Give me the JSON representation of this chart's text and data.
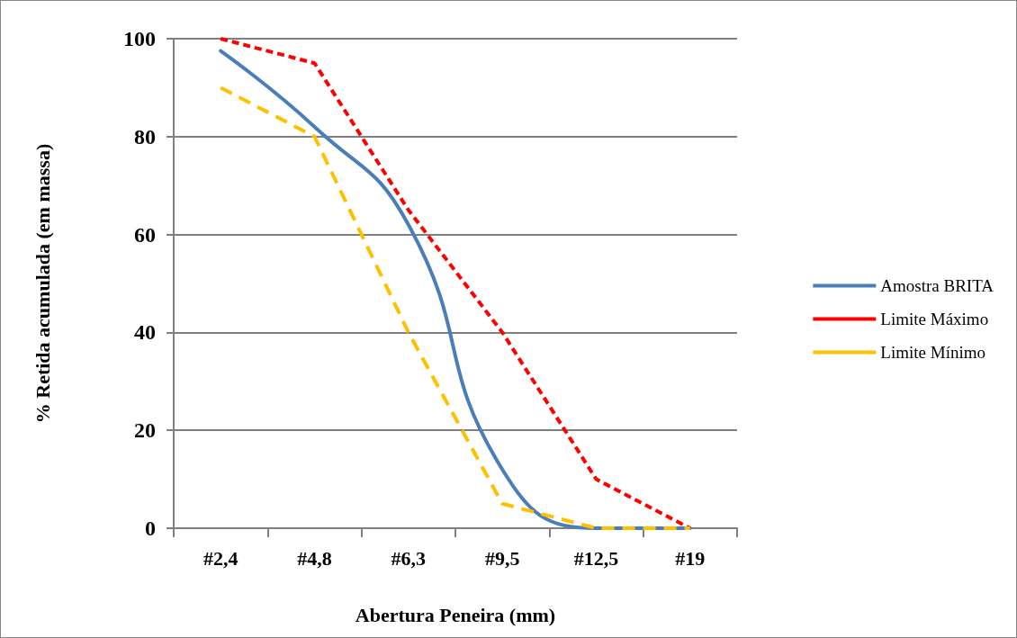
{
  "chart_data": {
    "type": "line",
    "xlabel": "Abertura Peneira (mm)",
    "ylabel": "% Retida acumulada (em massa)",
    "categories": [
      "#2,4",
      "#4,8",
      "#6,3",
      "#9,5",
      "#12,5",
      "#19"
    ],
    "series": [
      {
        "name": "Amostra BRITA",
        "color": "#4a7ebb",
        "values": [
          97.5,
          82,
          62,
          12,
          0,
          0
        ],
        "line_style": "solid"
      },
      {
        "name": "Limite Máximo",
        "color": "#ff0000",
        "values": [
          100,
          95,
          65,
          40,
          10,
          0
        ],
        "line_style": "dotted"
      },
      {
        "name": "Limite Mínimo",
        "color": "#ffc000",
        "values": [
          90,
          80,
          40,
          5,
          0,
          0
        ],
        "line_style": "dashed"
      }
    ],
    "ylim": [
      0,
      100
    ],
    "yticks": [
      0,
      20,
      40,
      60,
      80,
      100
    ],
    "grid": "y",
    "legend": "right",
    "marker": "none"
  }
}
